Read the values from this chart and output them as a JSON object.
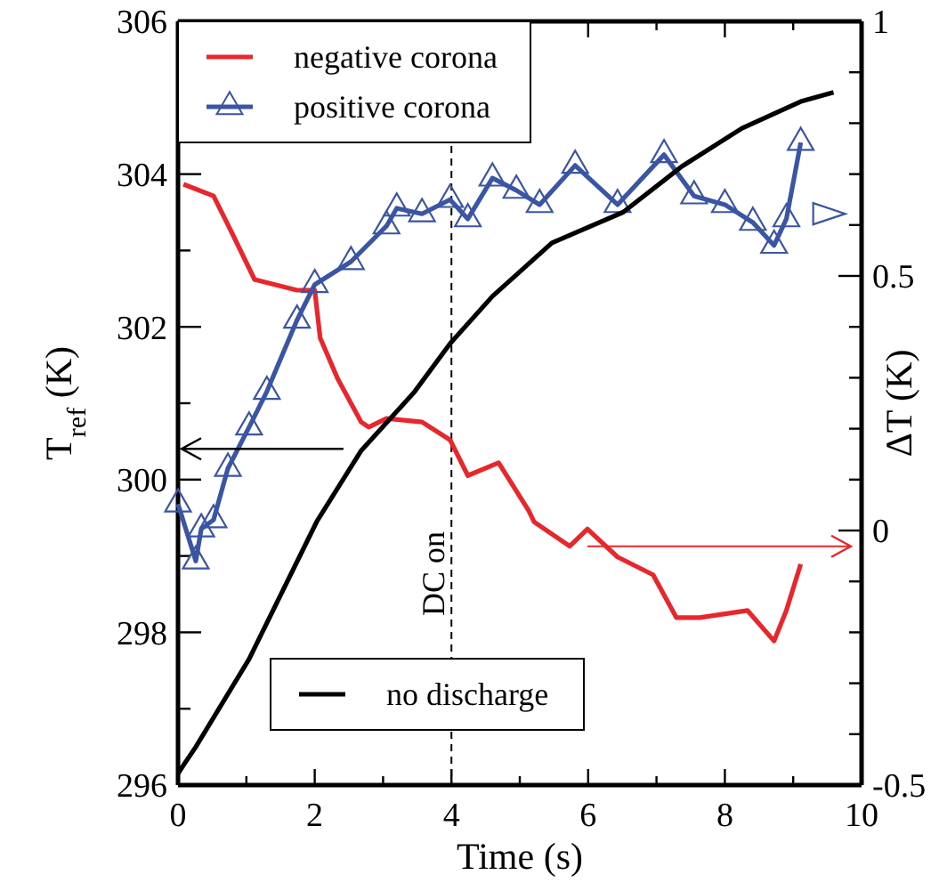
{
  "chart_data": {
    "type": "line",
    "xlabel": "Time (s)",
    "ylabel": "T$_{ref}$ (K)",
    "y2label": "ΔT (K)",
    "xlim": [
      0,
      10
    ],
    "xticks": [
      0,
      {
        "value": 1,
        "label": null
      },
      2,
      {
        "value": 3,
        "label": null
      },
      4,
      {
        "value": 5,
        "label": null
      },
      6,
      {
        "value": 7,
        "label": null
      },
      8,
      {
        "value": 9,
        "label": null
      },
      10
    ],
    "ylim": [
      296,
      306
    ],
    "yticks": [
      296,
      {
        "value": 297,
        "label": null
      },
      298,
      {
        "value": 299,
        "label": null
      },
      300,
      {
        "value": 301,
        "label": null
      },
      302,
      {
        "value": 303,
        "label": null
      },
      304,
      {
        "value": 305,
        "label": null
      },
      306
    ],
    "y2lim": [
      -0.5,
      1
    ],
    "y2ticks": [
      -0.5,
      {
        "value": -0.4,
        "label": null
      },
      {
        "value": -0.3,
        "label": null
      },
      {
        "value": -0.2,
        "label": null
      },
      {
        "value": -0.1,
        "label": null
      },
      0,
      {
        "value": 0.1,
        "label": null
      },
      {
        "value": 0.2,
        "label": null
      },
      {
        "value": 0.3,
        "label": null
      },
      {
        "value": 0.4,
        "label": null
      },
      0.5,
      {
        "value": 0.6,
        "label": null
      },
      {
        "value": 0.7,
        "label": null
      },
      {
        "value": 0.8,
        "label": null
      },
      {
        "value": 0.9,
        "label": null
      },
      1
    ],
    "grid": false,
    "legend": "top left",
    "ref_lines": [
      {
        "axis": "x",
        "value": 4,
        "label": "DC on",
        "color": "#000000",
        "line_style": "dashed"
      }
    ],
    "series": [
      {
        "name": "negative corona",
        "color": "#e8262b",
        "axis": "y2",
        "marker": "none",
        "x": [
          0.08,
          0.52,
          0.78,
          1.12,
          1.74,
          2.0,
          2.08,
          2.34,
          2.68,
          2.79,
          3.05,
          3.57,
          3.98,
          4.24,
          4.69,
          5.13,
          5.21,
          5.73,
          5.99,
          6.43,
          6.95,
          7.29,
          7.63,
          8.33,
          8.72,
          8.9,
          9.11
        ],
        "values": [
          0.68,
          0.657,
          0.587,
          0.493,
          0.472,
          0.472,
          0.378,
          0.297,
          0.213,
          0.203,
          0.22,
          0.213,
          0.178,
          0.108,
          0.133,
          0.039,
          0.017,
          -0.031,
          0.003,
          -0.052,
          -0.087,
          -0.171,
          -0.171,
          -0.157,
          -0.217,
          -0.157,
          -0.066
        ]
      },
      {
        "name": "positive corona",
        "color": "#3a55a4",
        "axis": "y2",
        "marker": "triangle",
        "x": [
          0.0,
          0.26,
          0.34,
          0.52,
          0.73,
          1.04,
          1.3,
          1.74,
          2.0,
          2.53,
          3.05,
          3.2,
          3.57,
          3.98,
          4.24,
          4.6,
          4.95,
          5.29,
          5.81,
          6.43,
          7.11,
          7.55,
          8.0,
          8.41,
          8.72,
          8.9,
          9.11
        ],
        "values": [
          0.052,
          -0.06,
          0.003,
          0.021,
          0.122,
          0.203,
          0.273,
          0.413,
          0.483,
          0.528,
          0.598,
          0.633,
          0.622,
          0.65,
          0.612,
          0.692,
          0.668,
          0.64,
          0.717,
          0.64,
          0.738,
          0.657,
          0.64,
          0.605,
          0.56,
          0.612,
          0.762
        ]
      },
      {
        "name": "no discharge",
        "color": "#000000",
        "axis": "y",
        "marker": "none",
        "x": [
          0.0,
          0.08,
          0.26,
          1.04,
          2.03,
          2.68,
          3.46,
          3.98,
          4.6,
          5.47,
          6.51,
          7.37,
          8.25,
          9.11,
          9.59
        ],
        "values": [
          296.15,
          296.26,
          296.5,
          297.65,
          299.45,
          300.38,
          301.15,
          301.78,
          302.4,
          303.1,
          303.5,
          304.1,
          304.6,
          304.95,
          305.07
        ]
      }
    ]
  }
}
